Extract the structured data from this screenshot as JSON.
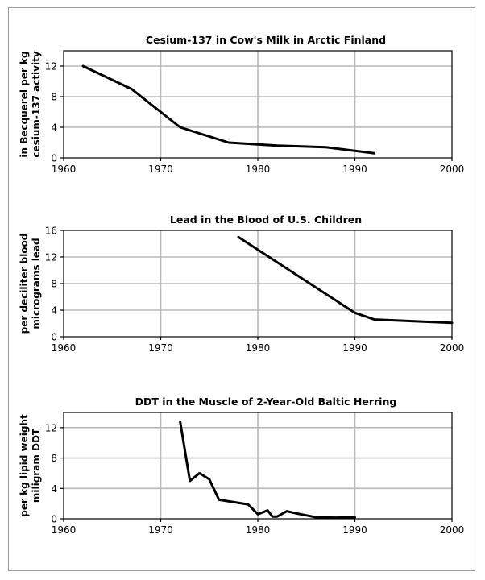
{
  "chart_data": [
    {
      "type": "line",
      "title": "Cesium-137 in Cow's Milk in Arctic Finland",
      "ylabel_lines": [
        "cesium-137 activity",
        "in Becquerel per kg"
      ],
      "xlim": [
        1960,
        2000
      ],
      "ylim": [
        0,
        14
      ],
      "xticks": [
        1960,
        1970,
        1980,
        1990,
        2000
      ],
      "yticks": [
        0,
        4,
        8,
        12
      ],
      "grid": true,
      "series": [
        {
          "x": [
            1962,
            1967,
            1972,
            1977,
            1982,
            1987,
            1992
          ],
          "y": [
            12,
            9,
            4,
            2,
            1.6,
            1.4,
            0.6
          ]
        }
      ]
    },
    {
      "type": "line",
      "title": "Lead in the Blood of U.S. Children",
      "ylabel_lines": [
        "micrograms lead",
        "per deciliter blood"
      ],
      "xlim": [
        1960,
        2000
      ],
      "ylim": [
        0,
        16
      ],
      "xticks": [
        1960,
        1970,
        1980,
        1990,
        2000
      ],
      "yticks": [
        0,
        4,
        8,
        12,
        16
      ],
      "grid": true,
      "series": [
        {
          "x": [
            1978,
            1990,
            1992,
            2000
          ],
          "y": [
            15,
            3.6,
            2.6,
            2.1
          ]
        }
      ]
    },
    {
      "type": "line",
      "title": "DDT in the Muscle of 2-Year-Old Baltic Herring",
      "ylabel_lines": [
        "miligram DDT",
        "per kg lipid weight"
      ],
      "xlim": [
        1960,
        2000
      ],
      "ylim": [
        0,
        14
      ],
      "xticks": [
        1960,
        1970,
        1980,
        1990,
        2000
      ],
      "yticks": [
        0,
        4,
        8,
        12
      ],
      "grid": true,
      "series": [
        {
          "x": [
            1972,
            1973,
            1974,
            1975,
            1976,
            1979,
            1980,
            1981,
            1981.5,
            1982,
            1983,
            1984,
            1986,
            1988,
            1990
          ],
          "y": [
            12.8,
            5.0,
            6.0,
            5.2,
            2.5,
            1.9,
            0.6,
            1.1,
            0.3,
            0.3,
            1.0,
            0.7,
            0.2,
            0.15,
            0.2
          ]
        }
      ]
    }
  ]
}
